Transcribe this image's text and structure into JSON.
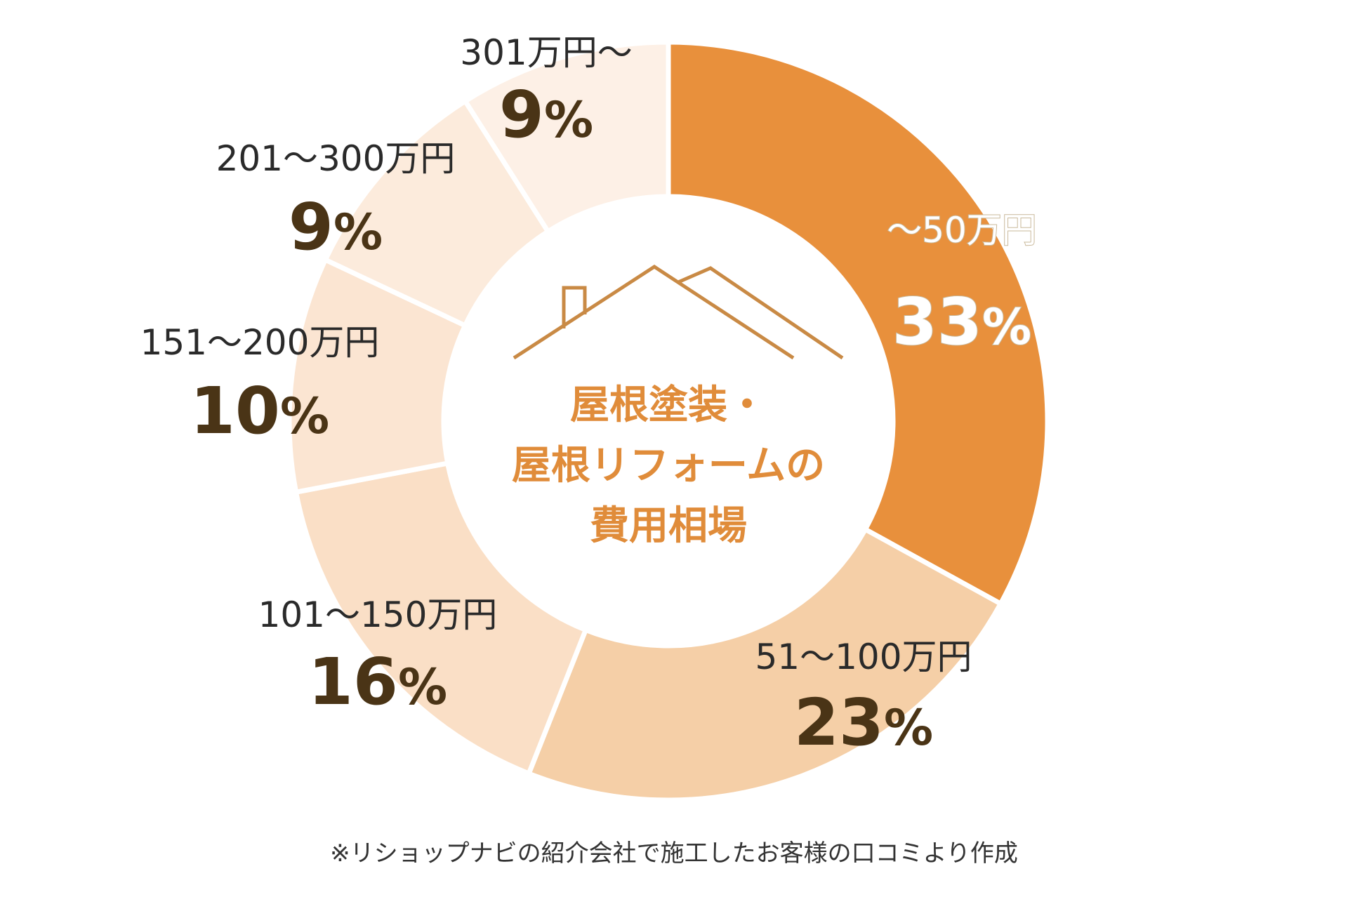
{
  "chart_data": {
    "type": "donut",
    "title": "屋根塗装・屋根リフォームの費用相場",
    "title_lines": [
      "屋根塗装・",
      "屋根リフォームの",
      "費用相場"
    ],
    "categories": [
      "～50万円",
      "51～100万円",
      "101～150万円",
      "151～200万円",
      "201～300万円",
      "301万円～"
    ],
    "values": [
      33,
      23,
      16,
      10,
      9,
      9
    ],
    "value_labels": [
      "33",
      "23",
      "16",
      "10",
      "9",
      "9"
    ],
    "unit": "%",
    "colors": [
      "#e8903c",
      "#f5cfa7",
      "#fadfc6",
      "#fbe5d2",
      "#fcebdc",
      "#fdf0e6"
    ],
    "center_icon": "house-roof-icon"
  },
  "footnote": "※リショップナビの紹介会社で施工したお客様の口コミより作成"
}
